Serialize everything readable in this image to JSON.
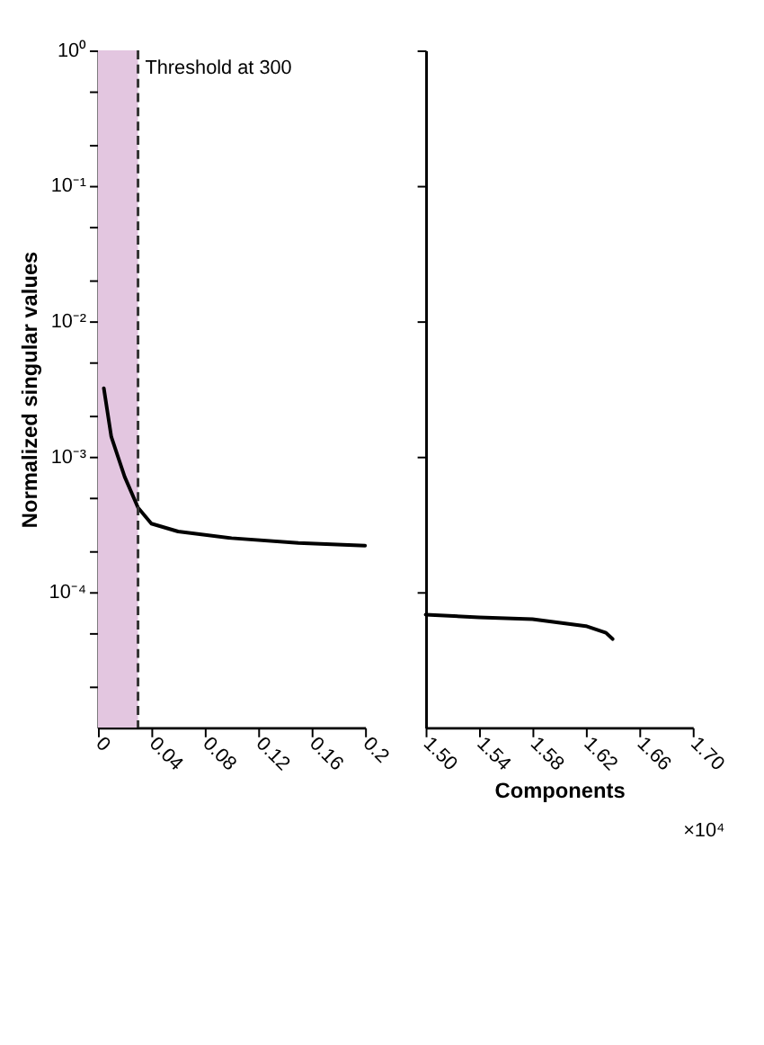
{
  "chart_data": [
    {
      "type": "line",
      "ylabel": "Normalized singular values",
      "log": true,
      "grid": false,
      "x": [
        0.0044,
        0.01,
        0.02,
        0.03,
        0.04,
        0.06,
        0.1,
        0.15,
        0.2
      ],
      "series": [
        {
          "color": "#000000",
          "values": [
            0.0032,
            0.0014,
            0.00071,
            0.00042,
            0.00032,
            0.00028,
            0.00025,
            0.00023,
            0.00022
          ]
        }
      ],
      "xlim": [
        0,
        0.2
      ],
      "xticks": [
        0,
        0.04,
        0.08,
        0.12,
        0.16,
        0.2
      ],
      "ylim": [
        1e-05,
        1
      ],
      "yticks": [
        {
          "value": 1,
          "label": "10⁰"
        },
        {
          "value": 0.1,
          "label": "10⁻¹"
        },
        {
          "value": 0.01,
          "label": "10⁻²"
        },
        {
          "value": 0.001,
          "label": "10⁻³"
        },
        {
          "value": 0.0001,
          "label": "10⁻⁴"
        },
        {
          "value": 0.5,
          "label": null
        },
        {
          "value": 0.2,
          "label": null
        },
        {
          "value": 0.05,
          "label": null
        },
        {
          "value": 0.02,
          "label": null
        },
        {
          "value": 0.005,
          "label": null
        },
        {
          "value": 0.002,
          "label": null
        },
        {
          "value": 0.0005,
          "label": null
        },
        {
          "value": 0.0002,
          "label": null
        },
        {
          "value": 5e-05,
          "label": null
        },
        {
          "value": 2e-05,
          "label": null
        }
      ],
      "ref_lines": [
        {
          "axis": "x",
          "value": 0.03,
          "label": "Threshold at 300",
          "line_style": "dashed",
          "color": "#333333"
        }
      ],
      "bands": [
        {
          "axis": "x",
          "from": 0,
          "to": 0.03,
          "color": "#e3c6e0"
        }
      ]
    },
    {
      "type": "line",
      "xlabel": "Components",
      "log": true,
      "grid": false,
      "tick_labels": "x",
      "x": [
        1.5,
        1.54,
        1.58,
        1.62,
        1.635,
        1.64
      ],
      "series": [
        {
          "color": "#000000",
          "values": [
            6.8e-05,
            6.5e-05,
            6.3e-05,
            5.6e-05,
            5e-05,
            4.5e-05
          ]
        }
      ],
      "xlim": [
        1.5,
        1.7
      ],
      "xticks": [
        {
          "value": 1.5,
          "label": "1.50"
        },
        1.54,
        1.58,
        1.62,
        1.66,
        {
          "value": 1.7,
          "label": "1.70"
        }
      ],
      "ylim": [
        1e-05,
        1
      ],
      "yticks": [
        1,
        0.1,
        0.01,
        0.001,
        0.0001
      ],
      "annotations": [
        "×10⁴"
      ]
    }
  ]
}
